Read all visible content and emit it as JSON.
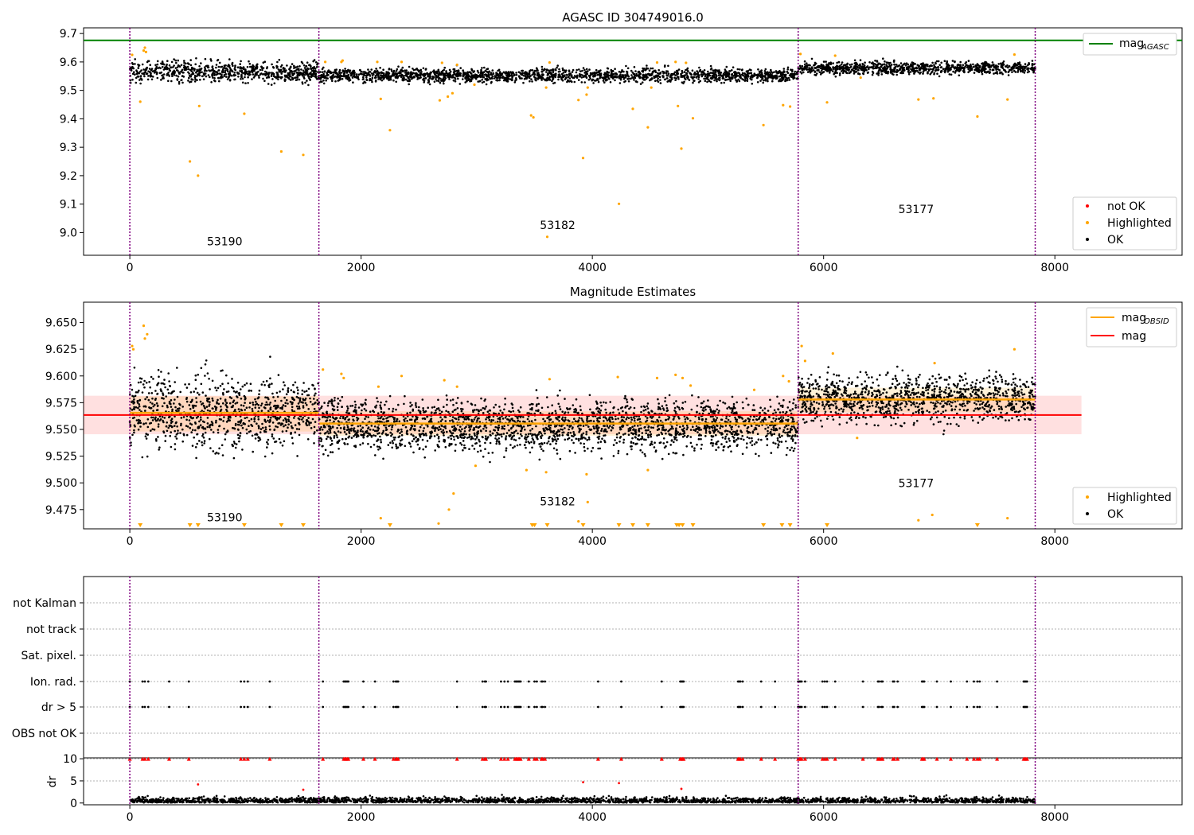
{
  "chart_data": [
    {
      "type": "scatter",
      "title": "AGASC ID 304749016.0",
      "xlabel": "",
      "ylabel": "",
      "xlim": [
        -400,
        9100
      ],
      "ylim": [
        8.92,
        9.72
      ],
      "xticks": [
        0,
        2000,
        4000,
        6000,
        8000
      ],
      "yticks": [
        9.0,
        9.1,
        9.2,
        9.3,
        9.4,
        9.5,
        9.6,
        9.7
      ],
      "ytick_labels": [
        "9.0",
        "9.1",
        "9.2",
        "9.3",
        "9.4",
        "9.5",
        "9.6",
        "9.7"
      ],
      "obsid_boundaries": [
        0,
        1635,
        5780,
        7830
      ],
      "obsids": [
        {
          "label": "53190",
          "x": 820,
          "y": 8.955
        },
        {
          "label": "53182",
          "x": 3700,
          "y": 9.012
        },
        {
          "label": "53177",
          "x": 6800,
          "y": 9.068
        }
      ],
      "mag_agasc": 9.676,
      "ok_segments": [
        {
          "x0": 0,
          "x1": 1635,
          "center": 9.565,
          "spread": 0.018
        },
        {
          "x0": 1635,
          "x1": 5780,
          "center": 9.553,
          "spread": 0.012
        },
        {
          "x0": 5780,
          "x1": 7830,
          "center": 9.579,
          "spread": 0.011
        }
      ],
      "highlighted": [
        [
          20,
          9.625
        ],
        [
          90,
          9.46
        ],
        [
          120,
          9.64
        ],
        [
          130,
          9.65
        ],
        [
          140,
          9.635
        ],
        [
          520,
          9.25
        ],
        [
          590,
          9.2
        ],
        [
          600,
          9.445
        ],
        [
          990,
          9.418
        ],
        [
          1310,
          9.285
        ],
        [
          1500,
          9.273
        ],
        [
          1690,
          9.6
        ],
        [
          1830,
          9.6
        ],
        [
          1840,
          9.605
        ],
        [
          2140,
          9.6
        ],
        [
          2170,
          9.47
        ],
        [
          2250,
          9.36
        ],
        [
          2350,
          9.6
        ],
        [
          2680,
          9.465
        ],
        [
          2700,
          9.597
        ],
        [
          2750,
          9.478
        ],
        [
          2790,
          9.49
        ],
        [
          2830,
          9.59
        ],
        [
          2980,
          9.52
        ],
        [
          3470,
          9.412
        ],
        [
          3490,
          9.405
        ],
        [
          3600,
          9.51
        ],
        [
          3630,
          9.598
        ],
        [
          3880,
          9.466
        ],
        [
          3920,
          9.262
        ],
        [
          3950,
          9.485
        ],
        [
          3960,
          9.51
        ],
        [
          4230,
          9.101
        ],
        [
          4350,
          9.435
        ],
        [
          4480,
          9.37
        ],
        [
          4510,
          9.51
        ],
        [
          4560,
          9.598
        ],
        [
          4720,
          9.6
        ],
        [
          4740,
          9.445
        ],
        [
          4770,
          9.295
        ],
        [
          4810,
          9.597
        ],
        [
          4870,
          9.402
        ],
        [
          5480,
          9.378
        ],
        [
          5650,
          9.448
        ],
        [
          5710,
          9.443
        ],
        [
          3610,
          8.985
        ],
        [
          5800,
          9.628
        ],
        [
          6030,
          9.458
        ],
        [
          6100,
          9.622
        ],
        [
          6320,
          9.545
        ],
        [
          6820,
          9.468
        ],
        [
          6950,
          9.472
        ],
        [
          7330,
          9.408
        ],
        [
          7590,
          9.468
        ],
        [
          7650,
          9.626
        ]
      ],
      "not_ok": [],
      "legend_main": [
        {
          "label": "mag",
          "sub": "AGASC",
          "color": "#008000"
        }
      ],
      "legend_points": [
        {
          "label": "not OK",
          "color": "#ff0000"
        },
        {
          "label": "Highlighted",
          "color": "#ffa500"
        },
        {
          "label": "OK",
          "color": "#000000"
        }
      ]
    },
    {
      "type": "scatter",
      "title": "Magnitude Estimates",
      "xlabel": "",
      "ylabel": "",
      "xlim": [
        -400,
        9100
      ],
      "ylim": [
        9.457,
        9.669
      ],
      "xticks": [
        0,
        2000,
        4000,
        6000,
        8000
      ],
      "yticks": [
        9.475,
        9.5,
        9.525,
        9.55,
        9.575,
        9.6,
        9.625,
        9.65
      ],
      "ytick_labels": [
        "9.475",
        "9.500",
        "9.525",
        "9.550",
        "9.575",
        "9.600",
        "9.625",
        "9.650"
      ],
      "obsid_boundaries": [
        0,
        1635,
        5780,
        7830
      ],
      "obsids": [
        {
          "label": "53190",
          "x": 820,
          "y": 9.464
        },
        {
          "label": "53182",
          "x": 3700,
          "y": 9.479
        },
        {
          "label": "53177",
          "x": 6800,
          "y": 9.496
        }
      ],
      "mag": 9.5635,
      "mag_band": [
        9.5455,
        9.5815
      ],
      "mag_band_x": [
        -400,
        8230
      ],
      "mag_obsid": [
        {
          "x0": 0,
          "x1": 1635,
          "value": 9.5655,
          "lo": 9.548,
          "hi": 9.581
        },
        {
          "x0": 1635,
          "x1": 5780,
          "value": 9.5555,
          "lo": 9.544,
          "hi": 9.567
        },
        {
          "x0": 5780,
          "x1": 7830,
          "value": 9.578,
          "lo": 9.566,
          "hi": 9.589
        }
      ],
      "ok_segments": [
        {
          "x0": 0,
          "x1": 1635,
          "center": 9.566,
          "spread": 0.017
        },
        {
          "x0": 1635,
          "x1": 5780,
          "center": 9.554,
          "spread": 0.012
        },
        {
          "x0": 5780,
          "x1": 7830,
          "center": 9.579,
          "spread": 0.011
        }
      ],
      "highlighted": [
        [
          20,
          9.628
        ],
        [
          30,
          9.625
        ],
        [
          120,
          9.647
        ],
        [
          130,
          9.635
        ],
        [
          150,
          9.639
        ],
        [
          1670,
          9.606
        ],
        [
          1830,
          9.602
        ],
        [
          1850,
          9.598
        ],
        [
          2150,
          9.59
        ],
        [
          2170,
          9.467
        ],
        [
          2350,
          9.6
        ],
        [
          2670,
          9.462
        ],
        [
          2720,
          9.596
        ],
        [
          2760,
          9.475
        ],
        [
          2800,
          9.49
        ],
        [
          2830,
          9.59
        ],
        [
          2990,
          9.516
        ],
        [
          3430,
          9.512
        ],
        [
          3600,
          9.51
        ],
        [
          3630,
          9.597
        ],
        [
          3880,
          9.464
        ],
        [
          3950,
          9.508
        ],
        [
          3960,
          9.482
        ],
        [
          4220,
          9.599
        ],
        [
          4480,
          9.512
        ],
        [
          4560,
          9.598
        ],
        [
          4720,
          9.601
        ],
        [
          4780,
          9.598
        ],
        [
          4850,
          9.591
        ],
        [
          5400,
          9.587
        ],
        [
          5650,
          9.6
        ],
        [
          5700,
          9.595
        ],
        [
          5810,
          9.628
        ],
        [
          5840,
          9.614
        ],
        [
          6080,
          9.621
        ],
        [
          6290,
          9.542
        ],
        [
          6820,
          9.465
        ],
        [
          6940,
          9.47
        ],
        [
          6960,
          9.612
        ],
        [
          7590,
          9.467
        ],
        [
          7650,
          9.625
        ]
      ],
      "below_markers": [
        90,
        520,
        590,
        990,
        1310,
        1500,
        2250,
        3480,
        3500,
        3610,
        3920,
        4230,
        4350,
        4480,
        4730,
        4750,
        4780,
        4870,
        5480,
        5640,
        5710,
        6030,
        7330
      ],
      "legend_main": [
        {
          "label": "mag",
          "sub": "OBSID",
          "color": "#ffa500"
        },
        {
          "label": "mag",
          "sub": "",
          "color": "#ff0000"
        }
      ],
      "legend_points": [
        {
          "label": "Highlighted",
          "color": "#ffa500"
        },
        {
          "label": "OK",
          "color": "#000000"
        }
      ]
    },
    {
      "type": "scatter",
      "title": "",
      "xlabel": "",
      "ylabel": "",
      "xlim": [
        -400,
        9100
      ],
      "categories": [
        "not Kalman",
        "not track",
        "Sat. pixel.",
        "Ion. rad.",
        "dr > 5",
        "OBS not OK"
      ],
      "obsid_boundaries": [
        0,
        1635,
        5780,
        7830
      ],
      "flag_times": [
        0,
        110,
        130,
        160,
        340,
        510,
        960,
        990,
        1020,
        1210,
        1670,
        1850,
        1860,
        1870,
        1880,
        1890,
        2020,
        2120,
        2280,
        2300,
        2310,
        2320,
        2830,
        3050,
        3070,
        3080,
        3210,
        3240,
        3270,
        3330,
        3340,
        3350,
        3360,
        3370,
        3380,
        3450,
        3500,
        3520,
        3560,
        3570,
        3590,
        4050,
        4250,
        4600,
        4760,
        4770,
        4780,
        4790,
        5260,
        5270,
        5280,
        5300,
        5460,
        5580,
        5780,
        5790,
        5800,
        5810,
        5840,
        5990,
        6010,
        6030,
        6100,
        6340,
        6470,
        6480,
        6500,
        6510,
        6600,
        6610,
        6640,
        6850,
        6860,
        6870,
        6980,
        7100,
        7240,
        7300,
        7330,
        7350,
        7500,
        7730,
        7740,
        7750,
        7760
      ]
    },
    {
      "type": "scatter",
      "title": "",
      "xlabel": "",
      "ylabel": "dr",
      "xlim": [
        -400,
        9100
      ],
      "ylim": [
        -0.4,
        10.2
      ],
      "xticks": [
        0,
        2000,
        4000,
        6000,
        8000
      ],
      "yticks": [
        0,
        5,
        10
      ],
      "obsid_boundaries": [
        0,
        1635,
        5780,
        7830
      ],
      "clipped_at": 10,
      "outliers": [
        [
          590,
          4.2
        ],
        [
          1500,
          3.0
        ],
        [
          3920,
          4.7
        ],
        [
          4230,
          4.5
        ],
        [
          4770,
          3.2
        ]
      ],
      "ok_range": [
        0.1,
        2.1
      ]
    }
  ]
}
